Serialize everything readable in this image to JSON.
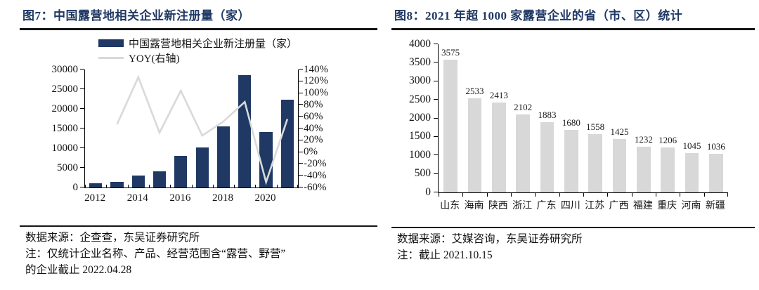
{
  "colors": {
    "accent_navy": "#1f3864",
    "bar_gray": "#d8d8d8",
    "line_gray": "#d9d9d9",
    "ink": "#111111"
  },
  "figure7": {
    "title": "图7：中国露营地相关企业新注册量（家）",
    "source": "数据来源：企查查，东吴证券研究所",
    "note1": "注：仅统计企业名称、产品、经营范围含“露营、野营”",
    "note2": "的企业截止 2022.04.28"
  },
  "figure8": {
    "title": "图8：2021 年超 1000 家露营企业的省（市、区）统计",
    "source": "数据来源：艾媒咨询，东吴证券研究所",
    "note1": "注：截止 2021.10.15"
  },
  "chart_data": [
    {
      "id": "fig7",
      "type": "bar",
      "title": "图7：中国露营地相关企业新注册量（家）",
      "categories": [
        "2012",
        "2013",
        "2014",
        "2015",
        "2016",
        "2017",
        "2018",
        "2019",
        "2020",
        "2021"
      ],
      "series": [
        {
          "name": "中国露营地相关企业新注册量（家）",
          "type": "bar",
          "axis": "left",
          "values": [
            1000,
            1400,
            3000,
            3950,
            7900,
            10100,
            15400,
            28500,
            14000,
            22300
          ]
        },
        {
          "name": "YOY(右轴)",
          "type": "line",
          "axis": "right",
          "values": [
            null,
            47,
            127,
            33,
            104,
            28,
            52,
            85,
            -51,
            56
          ]
        }
      ],
      "left_axis": {
        "min": 0,
        "max": 30000,
        "step": 5000
      },
      "right_axis": {
        "min": -60,
        "max": 140,
        "step": 20,
        "unit": "%"
      },
      "x_tick_labels": [
        "2012",
        "2014",
        "2016",
        "2018",
        "2020"
      ],
      "legend_position": "top",
      "grid": false
    },
    {
      "id": "fig8",
      "type": "bar",
      "title": "图8：2021 年超 1000 家露营企业的省（市、区）统计",
      "categories": [
        "山东",
        "海南",
        "陕西",
        "浙江",
        "广东",
        "四川",
        "江苏",
        "广西",
        "福建",
        "重庆",
        "河南",
        "新疆"
      ],
      "values": [
        3575,
        2533,
        2413,
        2102,
        1883,
        1680,
        1558,
        1425,
        1232,
        1206,
        1045,
        1036
      ],
      "ylabel": "",
      "ylim": [
        0,
        4000
      ],
      "y_step": 500,
      "data_labels": true,
      "grid": false
    }
  ]
}
